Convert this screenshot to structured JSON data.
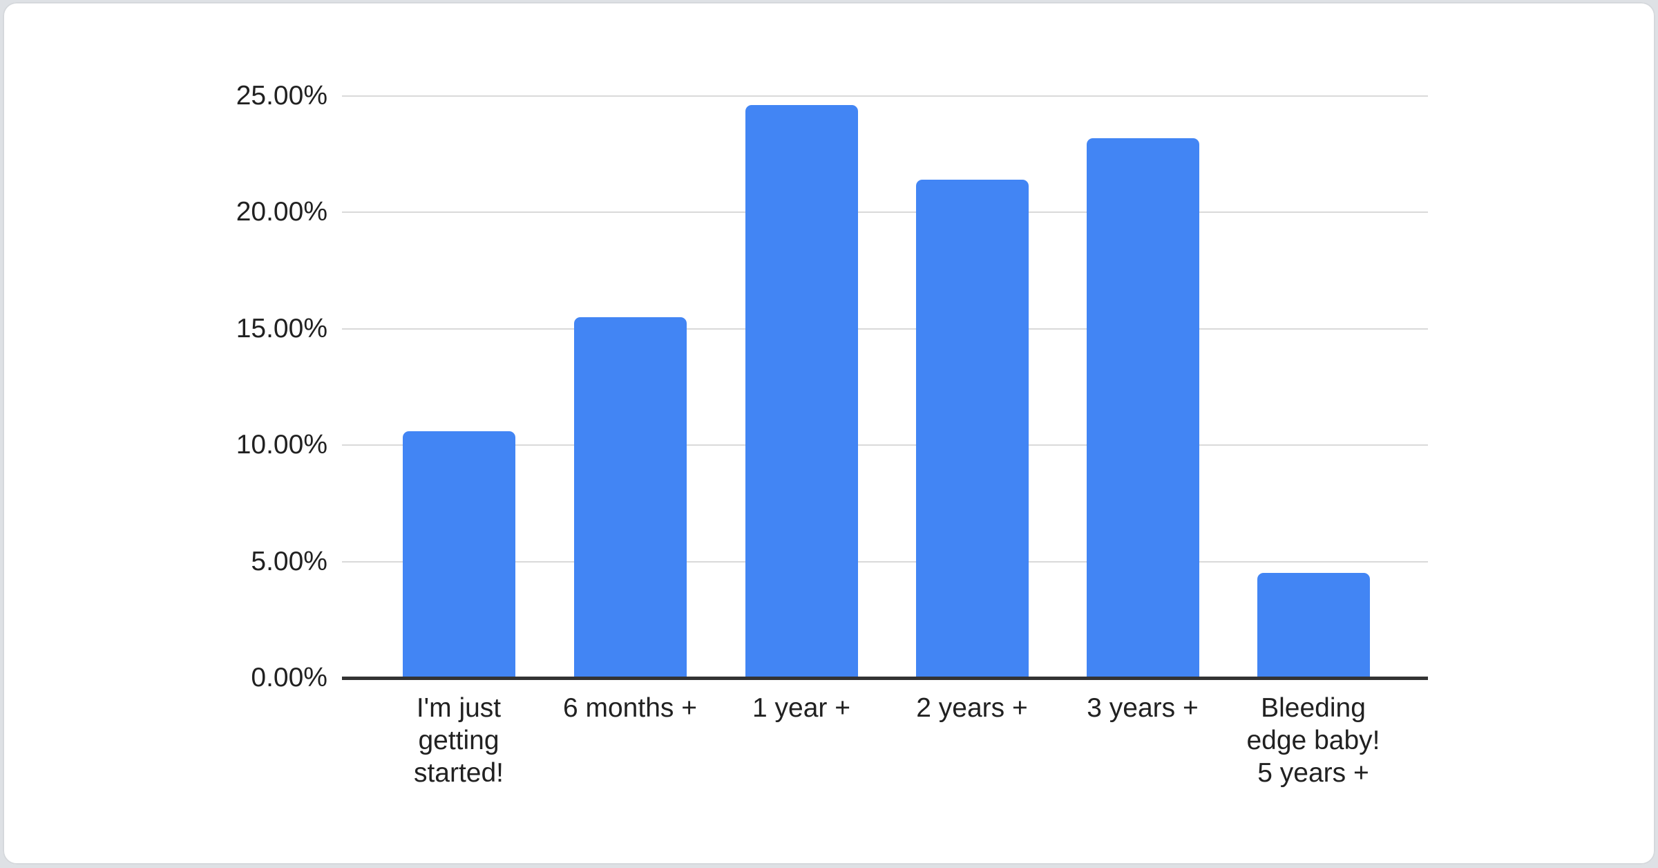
{
  "chart_data": {
    "type": "bar",
    "categories": [
      "I'm just getting started!",
      "6 months +",
      "1 year +",
      "2 years +",
      "3 years +",
      "Bleeding edge baby! 5 years +"
    ],
    "category_label_lines": [
      [
        "I'm just",
        "getting",
        "started!"
      ],
      [
        "6 months +"
      ],
      [
        "1 year +"
      ],
      [
        "2 years +"
      ],
      [
        "3 years +"
      ],
      [
        "Bleeding",
        "edge baby!",
        "5 years +"
      ]
    ],
    "values": [
      10.6,
      15.5,
      24.6,
      21.4,
      23.2,
      4.5
    ],
    "value_unit": "%",
    "y_ticks": [
      {
        "value": 25,
        "label": "25.00%"
      },
      {
        "value": 20,
        "label": "20.00%"
      },
      {
        "value": 15,
        "label": "15.00%"
      },
      {
        "value": 10,
        "label": "10.00%"
      },
      {
        "value": 5,
        "label": "5.00%"
      },
      {
        "value": 0,
        "label": "0.00%"
      }
    ],
    "ylim": [
      0,
      25
    ],
    "grid": true,
    "legend_position": "none",
    "colors": {
      "bar": "#4285f4",
      "axis_line": "#333333",
      "gridline": "#d9d9d9",
      "label_text": "#212121",
      "card_background": "#ffffff",
      "card_border": "#d5d8dc",
      "page_background": "#dee1e5"
    }
  }
}
